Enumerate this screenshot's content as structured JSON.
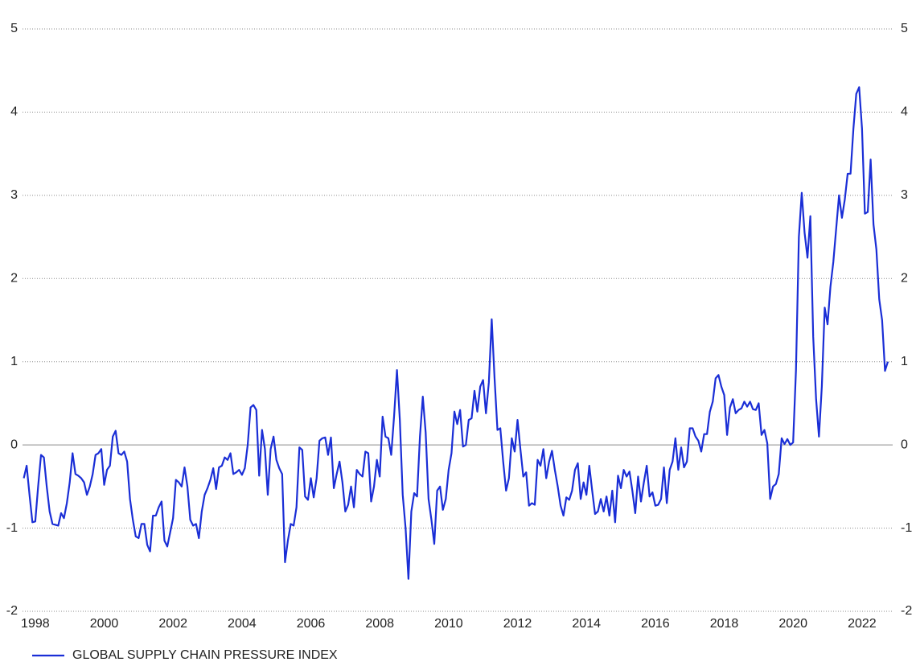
{
  "chart_data": {
    "type": "line",
    "x": [
      1997.667,
      1997.75,
      1997.833,
      1997.917,
      1998,
      1998.083,
      1998.167,
      1998.25,
      1998.333,
      1998.417,
      1998.5,
      1998.583,
      1998.667,
      1998.75,
      1998.833,
      1998.917,
      1999,
      1999.083,
      1999.167,
      1999.25,
      1999.333,
      1999.417,
      1999.5,
      1999.583,
      1999.667,
      1999.75,
      1999.833,
      1999.917,
      2000,
      2000.083,
      2000.167,
      2000.25,
      2000.333,
      2000.417,
      2000.5,
      2000.583,
      2000.667,
      2000.75,
      2000.833,
      2000.917,
      2001,
      2001.083,
      2001.167,
      2001.25,
      2001.333,
      2001.417,
      2001.5,
      2001.583,
      2001.667,
      2001.75,
      2001.833,
      2001.917,
      2002,
      2002.083,
      2002.167,
      2002.25,
      2002.333,
      2002.417,
      2002.5,
      2002.583,
      2002.667,
      2002.75,
      2002.833,
      2002.917,
      2003,
      2003.083,
      2003.167,
      2003.25,
      2003.333,
      2003.417,
      2003.5,
      2003.583,
      2003.667,
      2003.75,
      2003.833,
      2003.917,
      2004,
      2004.083,
      2004.167,
      2004.25,
      2004.333,
      2004.417,
      2004.5,
      2004.583,
      2004.667,
      2004.75,
      2004.833,
      2004.917,
      2005,
      2005.083,
      2005.167,
      2005.25,
      2005.333,
      2005.417,
      2005.5,
      2005.583,
      2005.667,
      2005.75,
      2005.833,
      2005.917,
      2006,
      2006.083,
      2006.167,
      2006.25,
      2006.333,
      2006.417,
      2006.5,
      2006.583,
      2006.667,
      2006.75,
      2006.833,
      2006.917,
      2007,
      2007.083,
      2007.167,
      2007.25,
      2007.333,
      2007.417,
      2007.5,
      2007.583,
      2007.667,
      2007.75,
      2007.833,
      2007.917,
      2008,
      2008.083,
      2008.167,
      2008.25,
      2008.333,
      2008.417,
      2008.5,
      2008.583,
      2008.667,
      2008.75,
      2008.833,
      2008.917,
      2009,
      2009.083,
      2009.167,
      2009.25,
      2009.333,
      2009.417,
      2009.5,
      2009.583,
      2009.667,
      2009.75,
      2009.833,
      2009.917,
      2010,
      2010.083,
      2010.167,
      2010.25,
      2010.333,
      2010.417,
      2010.5,
      2010.583,
      2010.667,
      2010.75,
      2010.833,
      2010.917,
      2011,
      2011.083,
      2011.167,
      2011.25,
      2011.333,
      2011.417,
      2011.5,
      2011.583,
      2011.667,
      2011.75,
      2011.833,
      2011.917,
      2012,
      2012.083,
      2012.167,
      2012.25,
      2012.333,
      2012.417,
      2012.5,
      2012.583,
      2012.667,
      2012.75,
      2012.833,
      2012.917,
      2013,
      2013.083,
      2013.167,
      2013.25,
      2013.333,
      2013.417,
      2013.5,
      2013.583,
      2013.667,
      2013.75,
      2013.833,
      2013.917,
      2014,
      2014.083,
      2014.167,
      2014.25,
      2014.333,
      2014.417,
      2014.5,
      2014.583,
      2014.667,
      2014.75,
      2014.833,
      2014.917,
      2015,
      2015.083,
      2015.167,
      2015.25,
      2015.333,
      2015.417,
      2015.5,
      2015.583,
      2015.667,
      2015.75,
      2015.833,
      2015.917,
      2016,
      2016.083,
      2016.167,
      2016.25,
      2016.333,
      2016.417,
      2016.5,
      2016.583,
      2016.667,
      2016.75,
      2016.833,
      2016.917,
      2017,
      2017.083,
      2017.167,
      2017.25,
      2017.333,
      2017.417,
      2017.5,
      2017.583,
      2017.667,
      2017.75,
      2017.833,
      2017.917,
      2018,
      2018.083,
      2018.167,
      2018.25,
      2018.333,
      2018.417,
      2018.5,
      2018.583,
      2018.667,
      2018.75,
      2018.833,
      2018.917,
      2019,
      2019.083,
      2019.167,
      2019.25,
      2019.333,
      2019.417,
      2019.5,
      2019.583,
      2019.667,
      2019.75,
      2019.833,
      2019.917,
      2020,
      2020.083,
      2020.167,
      2020.25,
      2020.333,
      2020.417,
      2020.5,
      2020.583,
      2020.667,
      2020.75,
      2020.833,
      2020.917,
      2021,
      2021.083,
      2021.167,
      2021.25,
      2021.333,
      2021.417,
      2021.5,
      2021.583,
      2021.667,
      2021.75,
      2021.833,
      2021.917,
      2022,
      2022.083,
      2022.167,
      2022.25,
      2022.333,
      2022.417,
      2022.5,
      2022.583,
      2022.667,
      2022.75
    ],
    "series": [
      {
        "name": "GLOBAL SUPPLY CHAIN PRESSURE INDEX",
        "color": "#1a2ed6",
        "values": [
          -0.4,
          -0.25,
          -0.6,
          -0.93,
          -0.92,
          -0.5,
          -0.12,
          -0.15,
          -0.5,
          -0.8,
          -0.95,
          -0.96,
          -0.97,
          -0.82,
          -0.88,
          -0.7,
          -0.45,
          -0.1,
          -0.35,
          -0.37,
          -0.4,
          -0.45,
          -0.6,
          -0.5,
          -0.35,
          -0.12,
          -0.1,
          -0.05,
          -0.48,
          -0.3,
          -0.25,
          0.1,
          0.17,
          -0.1,
          -0.12,
          -0.08,
          -0.2,
          -0.65,
          -0.9,
          -1.1,
          -1.12,
          -0.95,
          -0.95,
          -1.2,
          -1.28,
          -0.85,
          -0.85,
          -0.75,
          -0.68,
          -1.15,
          -1.22,
          -1.05,
          -0.88,
          -0.42,
          -0.45,
          -0.5,
          -0.27,
          -0.5,
          -0.9,
          -0.97,
          -0.95,
          -1.12,
          -0.8,
          -0.6,
          -0.52,
          -0.42,
          -0.28,
          -0.53,
          -0.27,
          -0.25,
          -0.15,
          -0.18,
          -0.1,
          -0.35,
          -0.33,
          -0.3,
          -0.36,
          -0.28,
          0.0,
          0.45,
          0.48,
          0.42,
          -0.37,
          0.18,
          -0.05,
          -0.6,
          -0.05,
          0.1,
          -0.18,
          -0.28,
          -0.35,
          -1.41,
          -1.15,
          -0.95,
          -0.97,
          -0.75,
          -0.03,
          -0.06,
          -0.62,
          -0.66,
          -0.4,
          -0.63,
          -0.4,
          0.05,
          0.08,
          0.09,
          -0.12,
          0.09,
          -0.52,
          -0.35,
          -0.2,
          -0.45,
          -0.8,
          -0.72,
          -0.5,
          -0.75,
          -0.3,
          -0.35,
          -0.38,
          -0.08,
          -0.1,
          -0.68,
          -0.5,
          -0.18,
          -0.38,
          0.34,
          0.1,
          0.08,
          -0.12,
          0.35,
          0.9,
          0.3,
          -0.6,
          -1.0,
          -1.61,
          -0.8,
          -0.58,
          -0.62,
          0.1,
          0.58,
          0.15,
          -0.65,
          -0.9,
          -1.19,
          -0.55,
          -0.5,
          -0.78,
          -0.65,
          -0.3,
          -0.1,
          0.4,
          0.25,
          0.42,
          -0.02,
          0.0,
          0.3,
          0.32,
          0.65,
          0.4,
          0.7,
          0.78,
          0.38,
          0.75,
          1.51,
          0.8,
          0.18,
          0.2,
          -0.2,
          -0.55,
          -0.4,
          0.08,
          -0.08,
          0.3,
          -0.05,
          -0.38,
          -0.33,
          -0.73,
          -0.7,
          -0.72,
          -0.18,
          -0.25,
          -0.05,
          -0.4,
          -0.2,
          -0.07,
          -0.3,
          -0.5,
          -0.73,
          -0.85,
          -0.63,
          -0.66,
          -0.55,
          -0.3,
          -0.22,
          -0.65,
          -0.45,
          -0.6,
          -0.25,
          -0.55,
          -0.83,
          -0.8,
          -0.65,
          -0.8,
          -0.62,
          -0.85,
          -0.55,
          -0.93,
          -0.37,
          -0.52,
          -0.3,
          -0.38,
          -0.32,
          -0.55,
          -0.82,
          -0.38,
          -0.68,
          -0.45,
          -0.25,
          -0.62,
          -0.57,
          -0.73,
          -0.72,
          -0.65,
          -0.27,
          -0.7,
          -0.3,
          -0.2,
          0.08,
          -0.3,
          -0.03,
          -0.27,
          -0.2,
          0.2,
          0.2,
          0.1,
          0.05,
          -0.08,
          0.13,
          0.13,
          0.4,
          0.52,
          0.8,
          0.84,
          0.7,
          0.6,
          0.12,
          0.45,
          0.55,
          0.38,
          0.42,
          0.44,
          0.52,
          0.46,
          0.52,
          0.43,
          0.42,
          0.5,
          0.12,
          0.18,
          0.02,
          -0.65,
          -0.5,
          -0.47,
          -0.35,
          0.08,
          0.01,
          0.07,
          0.0,
          0.03,
          0.9,
          2.5,
          3.03,
          2.55,
          2.25,
          2.75,
          1.3,
          0.55,
          0.1,
          0.7,
          1.65,
          1.45,
          1.9,
          2.2,
          2.6,
          3.0,
          2.73,
          2.95,
          3.26,
          3.26,
          3.8,
          4.22,
          4.3,
          3.8,
          2.78,
          2.8,
          3.43,
          2.65,
          2.35,
          1.75,
          1.5,
          0.89,
          1.0
        ]
      }
    ],
    "xlim": [
      1997.63,
      2022.89
    ],
    "xticks": [
      1998,
      2000,
      2002,
      2004,
      2006,
      2008,
      2010,
      2012,
      2014,
      2016,
      2018,
      2020,
      2022
    ],
    "ylim": [
      -2,
      5
    ],
    "yticks": [
      -2,
      -1,
      0,
      1,
      2,
      3,
      4,
      5
    ],
    "grid": true,
    "legend": "bottom-left"
  }
}
